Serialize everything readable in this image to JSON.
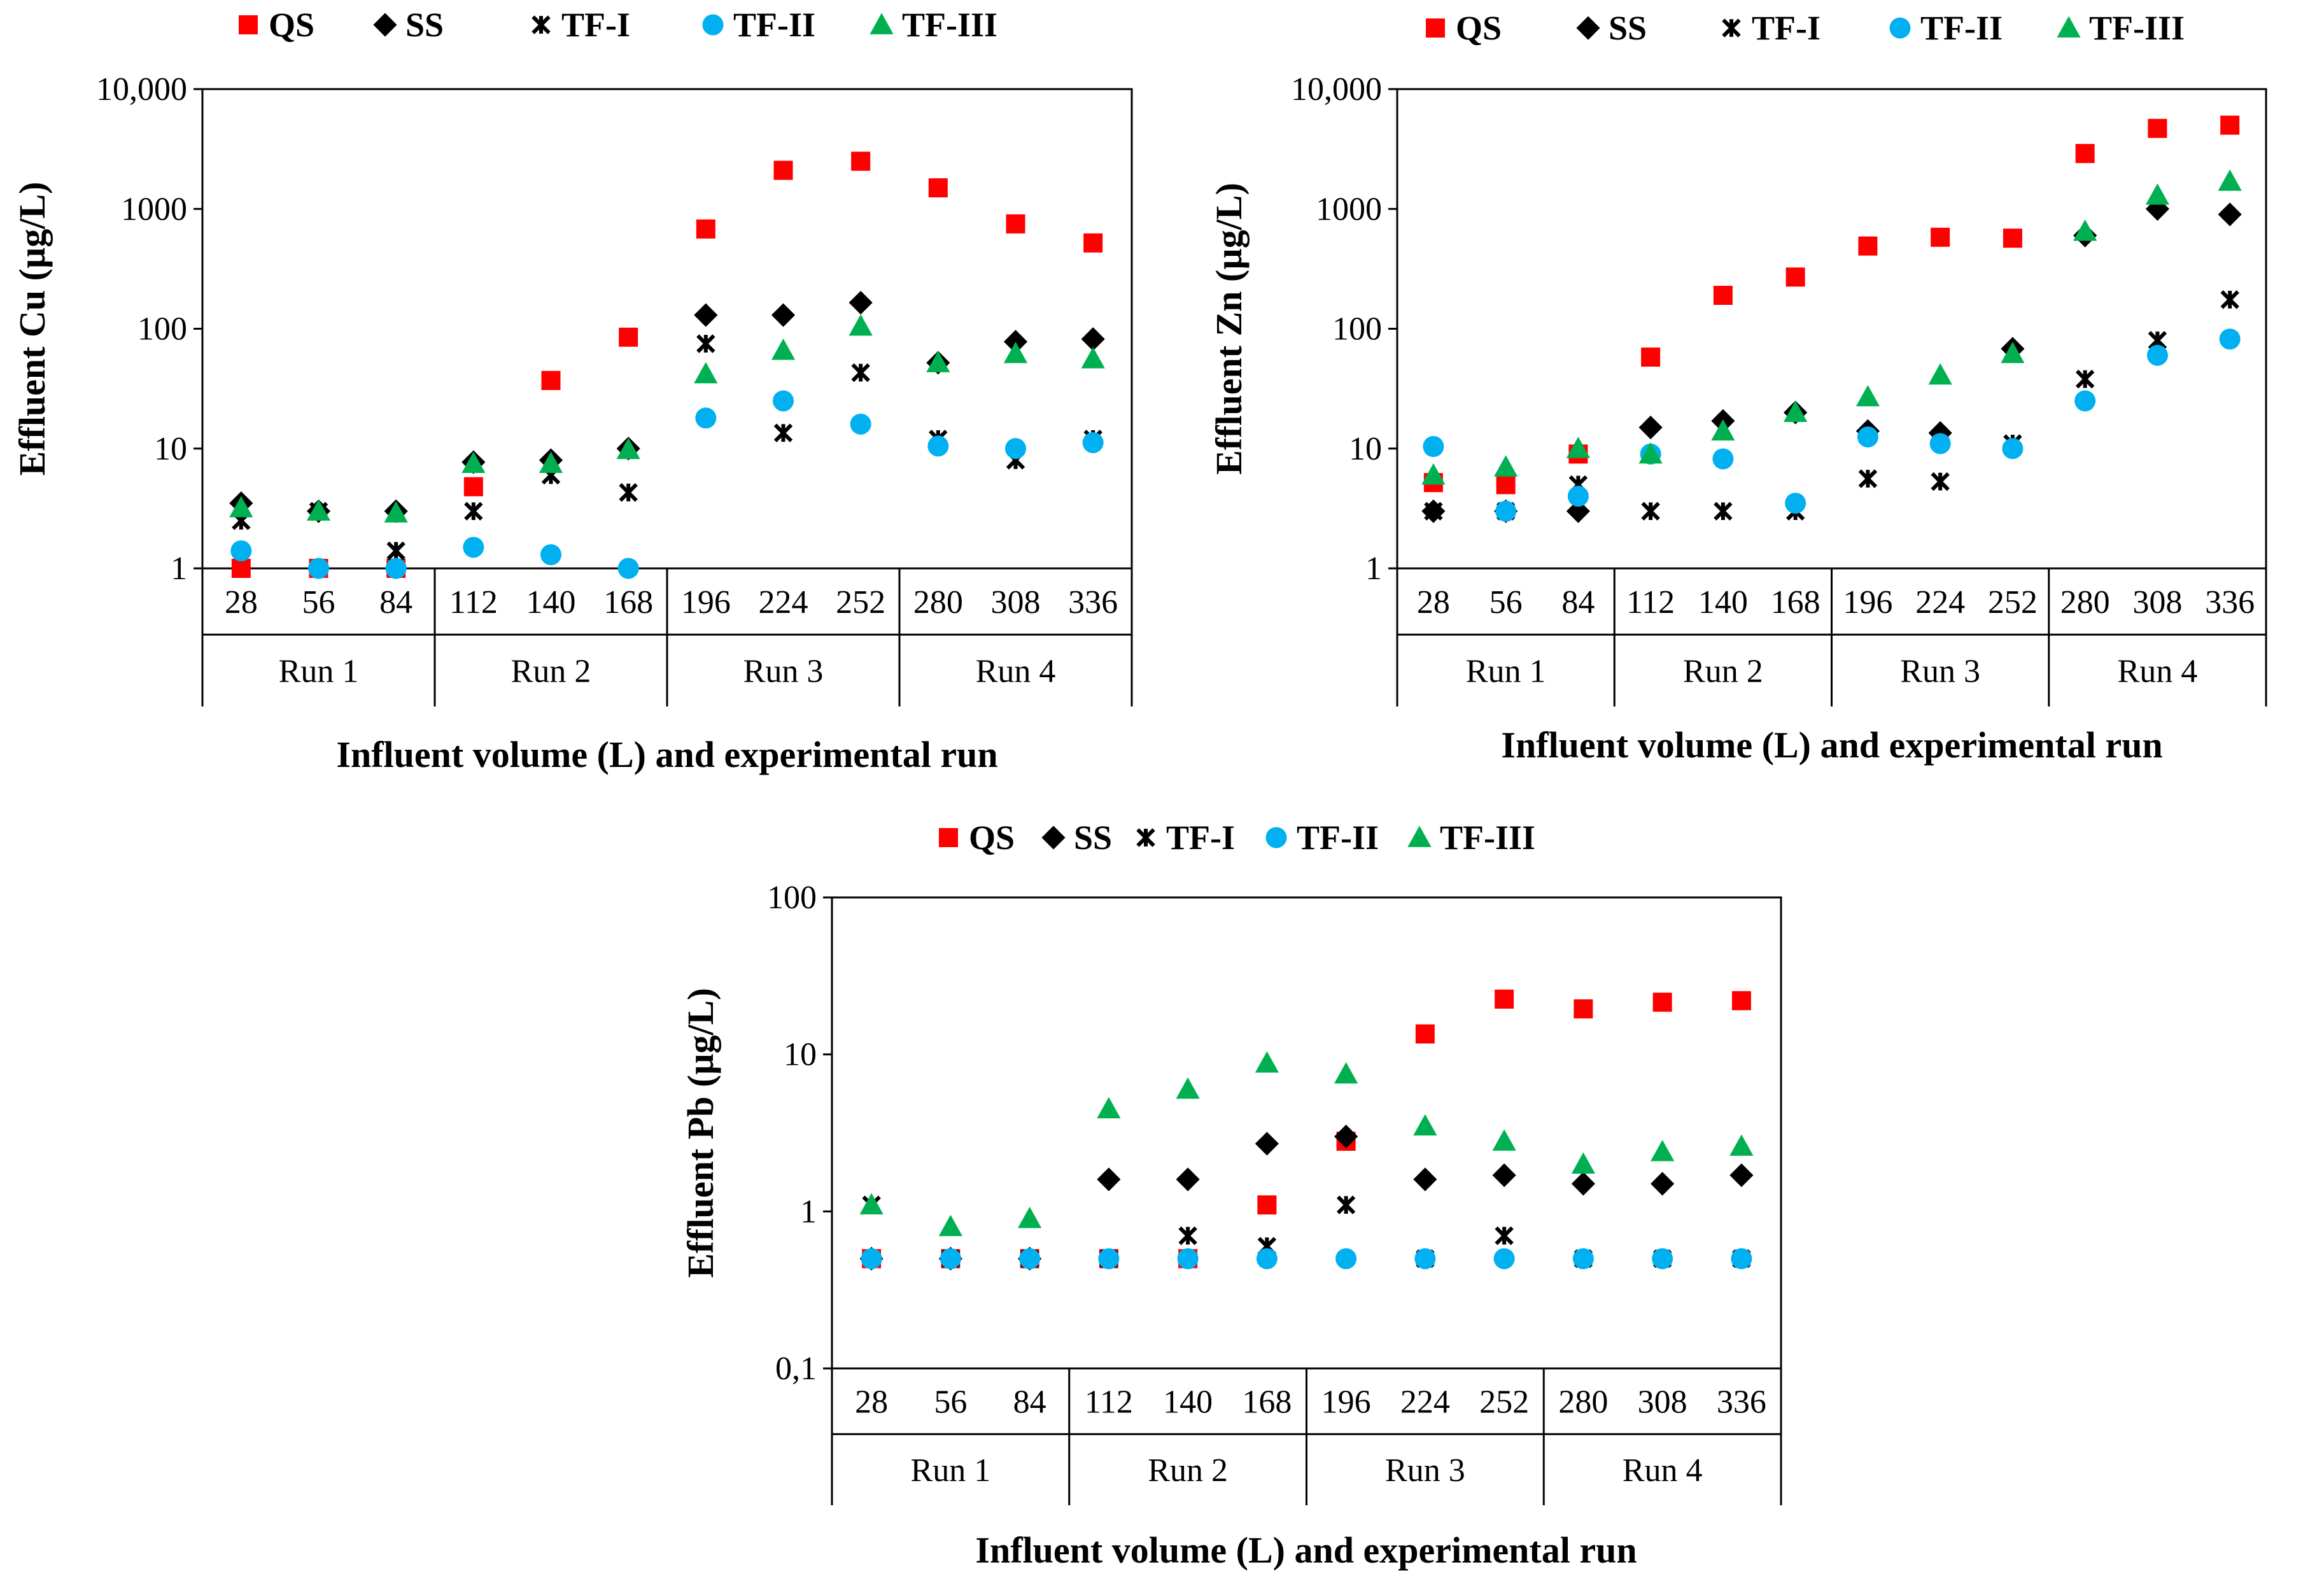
{
  "figure": {
    "legend": [
      {
        "name": "QS",
        "marker": "square",
        "color": "#FF0000"
      },
      {
        "name": "SS",
        "marker": "diamond",
        "color": "#000000"
      },
      {
        "name": "TF-I",
        "marker": "star",
        "color": "#000000"
      },
      {
        "name": "TF-II",
        "marker": "circle",
        "color": "#00B0F0"
      },
      {
        "name": "TF-III",
        "marker": "triangle",
        "color": "#00B050"
      }
    ]
  },
  "chart_data": [
    {
      "type": "scatter",
      "metal": "Cu",
      "ylabel": "Effluent Cu (µg/L)",
      "xlabel": "Influent volume (L) and experimental run",
      "yscale": "log",
      "ylim": [
        1,
        10000
      ],
      "y_ticks": [
        1,
        10,
        100,
        1000,
        10000
      ],
      "y_tick_labels": [
        "1",
        "10",
        "100",
        "1000",
        "10,000"
      ],
      "categories": [
        "28",
        "56",
        "84",
        "112",
        "140",
        "168",
        "196",
        "224",
        "252",
        "280",
        "308",
        "336"
      ],
      "runs": [
        "Run 1",
        "Run 2",
        "Run 3",
        "Run 4"
      ],
      "series": [
        {
          "name": "QS",
          "values": [
            1,
            1,
            1,
            4.8,
            37,
            85,
            680,
            2100,
            2500,
            1500,
            750,
            520
          ]
        },
        {
          "name": "SS",
          "values": [
            3.5,
            3,
            3,
            7.7,
            8,
            10,
            130,
            130,
            165,
            52,
            78,
            82
          ]
        },
        {
          "name": "TF-I",
          "values": [
            2.5,
            3,
            1.4,
            3,
            6,
            4.3,
            75,
            13.5,
            43,
            12,
            8,
            12
          ]
        },
        {
          "name": "TF-II",
          "values": [
            1.4,
            1,
            1,
            1.5,
            1.3,
            1,
            18,
            25,
            16,
            10.5,
            10,
            11.2
          ]
        },
        {
          "name": "TF-III",
          "values": [
            3.2,
            3,
            2.9,
            7.5,
            7.5,
            9.8,
            42,
            66,
            105,
            52,
            62,
            56
          ]
        }
      ]
    },
    {
      "type": "scatter",
      "metal": "Zn",
      "ylabel": "Effluent Zn (µg/L)",
      "xlabel": "Influent volume (L) and experimental run",
      "yscale": "log",
      "ylim": [
        1,
        10000
      ],
      "y_ticks": [
        1,
        10,
        100,
        1000,
        10000
      ],
      "y_tick_labels": [
        "1",
        "10",
        "100",
        "1000",
        "10,000"
      ],
      "categories": [
        "28",
        "56",
        "84",
        "112",
        "140",
        "168",
        "196",
        "224",
        "252",
        "280",
        "308",
        "336"
      ],
      "runs": [
        "Run 1",
        "Run 2",
        "Run 3",
        "Run 4"
      ],
      "series": [
        {
          "name": "QS",
          "values": [
            5.2,
            5,
            9,
            58,
            190,
            270,
            490,
            580,
            570,
            2900,
            4700,
            5000
          ]
        },
        {
          "name": "SS",
          "values": [
            3,
            3,
            3,
            15,
            17,
            20,
            14,
            13.5,
            68,
            600,
            1000,
            900
          ]
        },
        {
          "name": "TF-I",
          "values": [
            3,
            3,
            5,
            3,
            3,
            3,
            5.6,
            5.3,
            11,
            38,
            80,
            175
          ]
        },
        {
          "name": "TF-II",
          "values": [
            10.4,
            3,
            4,
            9,
            8.2,
            3.5,
            12.5,
            11,
            10,
            25,
            60,
            82
          ]
        },
        {
          "name": "TF-III",
          "values": [
            6,
            7,
            10,
            9,
            14,
            20,
            27,
            41,
            62,
            650,
            1300,
            1700
          ]
        }
      ]
    },
    {
      "type": "scatter",
      "metal": "Pb",
      "ylabel": "Effluent Pb (µg/L)",
      "xlabel": "Influent volume (L) and experimental run",
      "yscale": "log",
      "ylim": [
        0.1,
        100
      ],
      "y_ticks": [
        0.1,
        1,
        10,
        100
      ],
      "y_tick_labels": [
        "0,1",
        "1",
        "10",
        "100"
      ],
      "categories": [
        "28",
        "56",
        "84",
        "112",
        "140",
        "168",
        "196",
        "224",
        "252",
        "280",
        "308",
        "336"
      ],
      "runs": [
        "Run 1",
        "Run 2",
        "Run 3",
        "Run 4"
      ],
      "series": [
        {
          "name": "QS",
          "values": [
            0.5,
            0.5,
            0.5,
            0.5,
            0.5,
            1.1,
            2.8,
            13.5,
            22.5,
            19.5,
            21.5,
            22
          ]
        },
        {
          "name": "SS",
          "values": [
            0.5,
            0.5,
            0.5,
            1.6,
            1.6,
            2.7,
            3,
            1.6,
            1.7,
            1.5,
            1.5,
            1.7
          ]
        },
        {
          "name": "TF-I",
          "values": [
            1.1,
            0.5,
            0.5,
            0.5,
            0.7,
            0.6,
            1.1,
            0.5,
            0.7,
            0.5,
            0.5,
            0.5
          ]
        },
        {
          "name": "TF-II",
          "values": [
            0.5,
            0.5,
            0.5,
            0.5,
            0.5,
            0.5,
            0.5,
            0.5,
            0.5,
            0.5,
            0.5,
            0.5
          ]
        },
        {
          "name": "TF-III",
          "values": [
            1.1,
            0.8,
            0.9,
            4.5,
            6,
            8.8,
            7.5,
            3.5,
            2.8,
            2,
            2.4,
            2.6
          ]
        }
      ]
    }
  ]
}
